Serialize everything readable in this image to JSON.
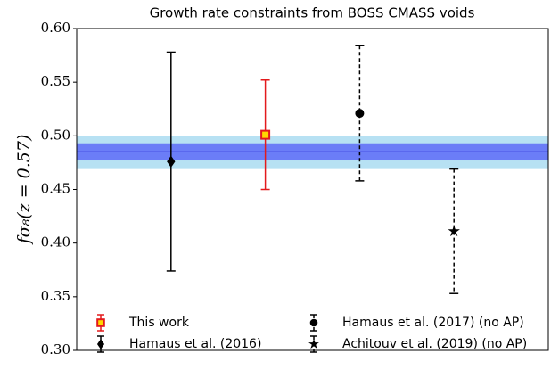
{
  "chart_data": {
    "type": "errorbar",
    "title": "Growth rate constraints from BOSS CMASS voids",
    "ylabel": "fσ₈(z = 0.57)",
    "xlim": [
      0,
      5
    ],
    "ylim": [
      0.3,
      0.6
    ],
    "yticks": [
      {
        "value": 0.3,
        "label": "0.30"
      },
      {
        "value": 0.35,
        "label": "0.35"
      },
      {
        "value": 0.4,
        "label": "0.40"
      },
      {
        "value": 0.45,
        "label": "0.45"
      },
      {
        "value": 0.5,
        "label": "0.50"
      },
      {
        "value": 0.55,
        "label": "0.55"
      },
      {
        "value": 0.6,
        "label": "0.60"
      }
    ],
    "band": {
      "value": 0.485,
      "inner": [
        0.477,
        0.493
      ],
      "outer": [
        0.469,
        0.5
      ],
      "line_color": "#2b2bd6",
      "inner_color": "#6b7df7",
      "outer_color": "#b7e1f3"
    },
    "legend_columns": 2,
    "series": [
      {
        "name": "This work",
        "color": "#e31a1c",
        "marker": "square",
        "marker_fill": "#ffd700",
        "linestyle": "solid",
        "x": [
          2
        ],
        "values": [
          0.501
        ],
        "yerr": [
          0.051
        ]
      },
      {
        "name": "Hamaus et al. (2016)",
        "color": "#000000",
        "marker": "diamond",
        "marker_fill": "#000000",
        "linestyle": "solid",
        "x": [
          1
        ],
        "values": [
          0.476
        ],
        "yerr": [
          0.102
        ]
      },
      {
        "name": "Hamaus et al. (2017) (no AP)",
        "color": "#000000",
        "marker": "circle",
        "marker_fill": "#000000",
        "linestyle": "dashed",
        "x": [
          3
        ],
        "values": [
          0.521
        ],
        "yerr": [
          0.063
        ]
      },
      {
        "name": "Achitouv et al. (2019) (no AP)",
        "color": "#000000",
        "marker": "star",
        "marker_fill": "#000000",
        "linestyle": "dashed",
        "x": [
          4
        ],
        "values": [
          0.411
        ],
        "yerr": [
          0.058
        ]
      }
    ]
  }
}
